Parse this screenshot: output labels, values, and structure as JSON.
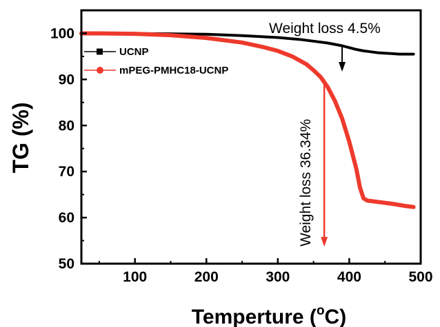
{
  "chart_data": {
    "type": "line",
    "xlabel": "Temperture (",
    "xlabel_unit_sup": "o",
    "xlabel_unit_tail": "C)",
    "ylabel": "TG (%)",
    "xlim": [
      25,
      500
    ],
    "ylim": [
      50,
      105
    ],
    "x_ticks": [
      100,
      200,
      300,
      400,
      500
    ],
    "y_ticks": [
      50,
      60,
      70,
      80,
      90,
      100
    ],
    "legend_position": "upper-left",
    "series": [
      {
        "name": "UCNP",
        "color": "#000000",
        "marker": "square",
        "x": [
          25,
          50,
          100,
          150,
          200,
          250,
          300,
          330,
          350,
          370,
          380,
          390,
          400,
          410,
          420,
          430,
          440,
          450,
          460,
          470,
          480,
          490
        ],
        "y": [
          100.0,
          100.0,
          99.95,
          99.9,
          99.8,
          99.5,
          99.1,
          98.7,
          98.3,
          97.9,
          97.6,
          97.3,
          96.9,
          96.5,
          96.2,
          96.0,
          95.8,
          95.7,
          95.6,
          95.5,
          95.5,
          95.5
        ]
      },
      {
        "name": "mPEG-PMHC18-UCNP",
        "color": "#ee3a2c",
        "marker": "circle",
        "x": [
          25,
          50,
          100,
          150,
          200,
          250,
          280,
          300,
          320,
          340,
          350,
          360,
          370,
          380,
          390,
          400,
          410,
          415,
          420,
          425,
          430,
          440,
          460,
          480,
          490
        ],
        "y": [
          100.0,
          100.0,
          99.9,
          99.6,
          99.0,
          98.0,
          97.0,
          96.2,
          95.0,
          93.3,
          92.0,
          90.5,
          88.3,
          85.3,
          81.5,
          76.5,
          70.5,
          66.5,
          64.2,
          63.7,
          63.6,
          63.4,
          63.0,
          62.5,
          62.3
        ]
      }
    ],
    "annotations": [
      {
        "text": "Weight loss 4.5%",
        "arrow_x": 390,
        "arrow_from": 97.3,
        "arrow_to": 92.0,
        "color": "#000000"
      },
      {
        "text": "Weight loss 36.34%",
        "arrow_x": 365,
        "arrow_from": 90.0,
        "arrow_to": 54.0,
        "color": "#ee3a2c"
      }
    ]
  }
}
